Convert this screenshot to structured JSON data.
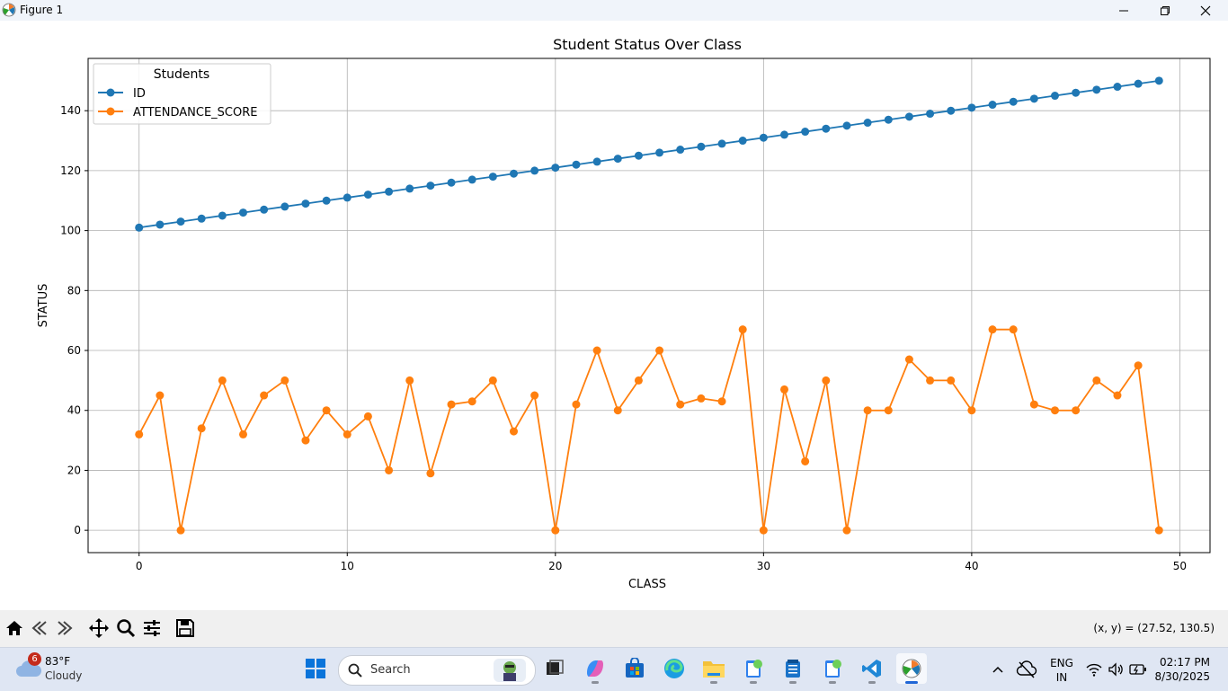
{
  "window": {
    "title": "Figure 1",
    "controls": {
      "minimize_icon": "minimize-icon",
      "maximize_icon": "restore-icon",
      "close_icon": "close-icon"
    }
  },
  "chart_data": {
    "type": "line",
    "title": "Student Status Over Class",
    "xlabel": "CLASS",
    "ylabel": "STATUS",
    "xlim": [
      -2.45,
      51.45
    ],
    "ylim": [
      -7.45,
      157.45
    ],
    "xticks": [
      0,
      10,
      20,
      30,
      40,
      50
    ],
    "yticks": [
      0,
      20,
      40,
      60,
      80,
      100,
      120,
      140
    ],
    "grid": true,
    "legend": {
      "title": "Students",
      "placement": "upper-left"
    },
    "x": [
      0,
      1,
      2,
      3,
      4,
      5,
      6,
      7,
      8,
      9,
      10,
      11,
      12,
      13,
      14,
      15,
      16,
      17,
      18,
      19,
      20,
      21,
      22,
      23,
      24,
      25,
      26,
      27,
      28,
      29,
      30,
      31,
      32,
      33,
      34,
      35,
      36,
      37,
      38,
      39,
      40,
      41,
      42,
      43,
      44,
      45,
      46,
      47,
      48,
      49
    ],
    "series": [
      {
        "name": "ID",
        "color": "#1f77b4",
        "values": [
          101,
          102,
          103,
          104,
          105,
          106,
          107,
          108,
          109,
          110,
          111,
          112,
          113,
          114,
          115,
          116,
          117,
          118,
          119,
          120,
          121,
          122,
          123,
          124,
          125,
          126,
          127,
          128,
          129,
          130,
          131,
          132,
          133,
          134,
          135,
          136,
          137,
          138,
          139,
          140,
          141,
          142,
          143,
          144,
          145,
          146,
          147,
          148,
          149,
          150
        ]
      },
      {
        "name": "ATTENDANCE_SCORE",
        "color": "#ff7f0e",
        "values": [
          32,
          45,
          0,
          34,
          50,
          32,
          45,
          50,
          30,
          40,
          32,
          38,
          20,
          50,
          19,
          42,
          43,
          50,
          33,
          45,
          0,
          42,
          60,
          40,
          50,
          60,
          42,
          44,
          43,
          67,
          0,
          47,
          23,
          50,
          0,
          40,
          40,
          57,
          50,
          50,
          40,
          67,
          67,
          42,
          40,
          40,
          50,
          45,
          55,
          0
        ]
      }
    ]
  },
  "toolbar": {
    "tools": [
      "home-icon",
      "back-icon",
      "forward-icon",
      "pan-icon",
      "zoom-icon",
      "configure-icon",
      "save-icon"
    ],
    "coordinate_readout": "(x, y) = (27.52, 130.5)"
  },
  "taskbar": {
    "weather": {
      "badge": "6",
      "temperature": "83°F",
      "condition": "Cloudy"
    },
    "search": {
      "label": "Search"
    },
    "tray": {
      "lang_top": "ENG",
      "lang_bottom": "IN",
      "time": "02:17 PM",
      "date": "8/30/2025"
    }
  }
}
